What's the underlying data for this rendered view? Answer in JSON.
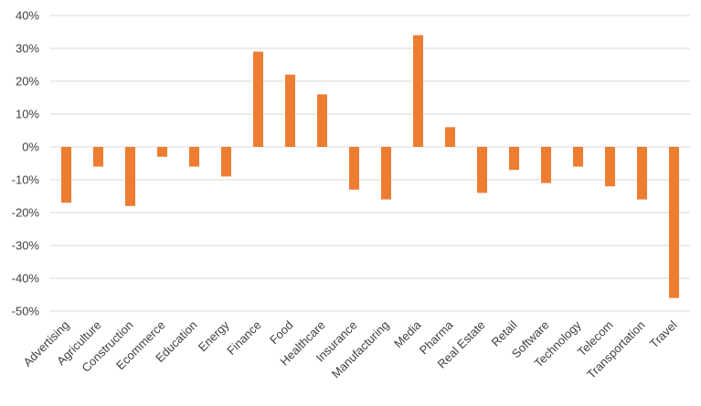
{
  "chart_data": {
    "type": "bar",
    "title": "",
    "xlabel": "",
    "ylabel": "",
    "categories": [
      "Advertising",
      "Agriculture",
      "Construction",
      "Ecommerce",
      "Education",
      "Energy",
      "Finance",
      "Food",
      "Healthcare",
      "Insurance",
      "Manufacturing",
      "Media",
      "Pharma",
      "Real Estate",
      "Retail",
      "Software",
      "Technology",
      "Telecom",
      "Transportation",
      "Travel"
    ],
    "values": [
      -17,
      -6,
      -18,
      -3,
      -6,
      -9,
      29,
      22,
      16,
      -13,
      -16,
      34,
      6,
      -14,
      -7,
      -11,
      -6,
      -12,
      -16,
      -46
    ],
    "ylim": [
      -50,
      40
    ],
    "yticks": [
      40,
      30,
      20,
      10,
      0,
      -10,
      -20,
      -30,
      -40,
      -50
    ],
    "ytick_labels": [
      "40%",
      "30%",
      "20%",
      "10%",
      "0%",
      "-10%",
      "-20%",
      "-30%",
      "-40%",
      "-50%"
    ],
    "grid": true,
    "legend": "none",
    "bar_color": "#ED7D31",
    "grid_color": "#D9D9D9",
    "text_color": "#404040"
  }
}
